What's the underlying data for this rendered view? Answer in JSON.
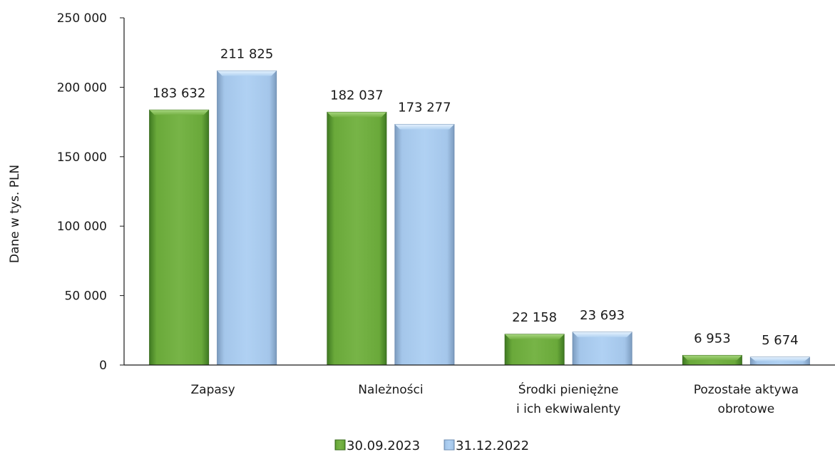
{
  "chart_data": {
    "type": "bar",
    "ylabel": "Dane w tys. PLN",
    "xlabel": "",
    "ylim": [
      0,
      250000
    ],
    "yticks": [
      0,
      50000,
      100000,
      150000,
      200000,
      250000
    ],
    "ytick_labels": [
      "0",
      "50 000",
      "100 000",
      "150 000",
      "200 000",
      "250 000"
    ],
    "categories": [
      [
        "Zapasy"
      ],
      [
        "Należności"
      ],
      [
        "Środki pieniężne",
        "i ich ekwiwalenty"
      ],
      [
        "Pozostałe aktywa",
        "obrotowe"
      ]
    ],
    "series": [
      {
        "name": "30.09.2023",
        "color": "#6fae3f",
        "values": [
          183632,
          182037,
          22158,
          6953
        ],
        "labels": [
          "183 632",
          "182 037",
          "22 158",
          "6 953"
        ]
      },
      {
        "name": "31.12.2022",
        "color": "#a9cbee",
        "values": [
          211825,
          173277,
          23693,
          5674
        ],
        "labels": [
          "211 825",
          "173 277",
          "23 693",
          "5 674"
        ]
      }
    ],
    "legend_position": "bottom",
    "grid": false
  }
}
